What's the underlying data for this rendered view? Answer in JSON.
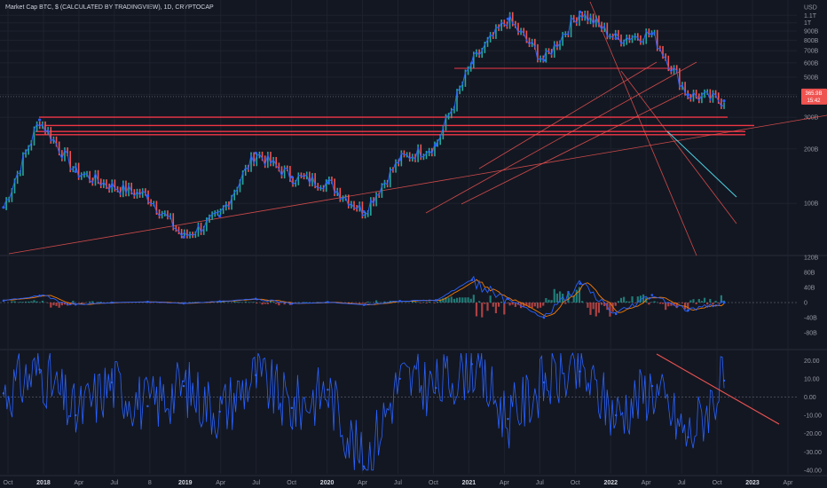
{
  "header": {
    "title": "Market Cap BTC, $ (CALCULATED BY TRADINGVIEW), 1D, CRYPTOCAP"
  },
  "colors": {
    "background": "#131722",
    "grid": "#1e222d",
    "price_up": "#26a69a",
    "price_down": "#ef5350",
    "price_line": "#2962ff",
    "level_line": "#f23645",
    "level_line_soft": "#e91e63",
    "trend_line": "#ef5350",
    "channel_line": "#4dd0e1",
    "osc_line": "#2962ff",
    "osc_signal": "#f57c00",
    "histogram_pos": "#26a69a",
    "histogram_neg": "#ef5350",
    "rsi_line": "#2962ff",
    "last_price_badge": "#ef5350"
  },
  "x_axis": {
    "labels": [
      "Oct",
      "2018",
      "Apr",
      "Jul",
      "8",
      "2019",
      "Apr",
      "Jul",
      "Oct",
      "2020",
      "Apr",
      "Jul",
      "Oct",
      "2021",
      "Apr",
      "Jul",
      "Oct",
      "2022",
      "Apr",
      "Jul",
      "Oct",
      "2023",
      "Apr"
    ],
    "bold_labels": [
      "2018",
      "2019",
      "2020",
      "2021",
      "2022",
      "2023"
    ]
  },
  "chart_data": [
    {
      "type": "line",
      "name": "price",
      "ylabel": "USD",
      "y_scale": "log",
      "y_ticks": [
        "USD",
        "1.1T",
        "1T",
        "900B",
        "800B",
        "700B",
        "600B",
        "500B",
        "400B",
        "300B",
        "200B",
        "100B"
      ],
      "last_value_badge": [
        "365.9B",
        "15:42"
      ],
      "x": [
        "2017-10",
        "2018-01",
        "2018-04",
        "2018-07",
        "2018-10",
        "2019-01",
        "2019-04",
        "2019-07",
        "2019-10",
        "2020-01",
        "2020-04",
        "2020-07",
        "2020-10",
        "2021-01",
        "2021-04",
        "2021-07",
        "2021-10",
        "2022-01",
        "2022-04",
        "2022-07",
        "2022-10"
      ],
      "values": [
        95,
        290,
        150,
        125,
        110,
        65,
        85,
        190,
        140,
        130,
        90,
        175,
        210,
        600,
        1050,
        620,
        1150,
        820,
        870,
        400,
        370
      ]
    },
    {
      "type": "line",
      "name": "oscillator",
      "y_ticks": [
        "120B",
        "80B",
        "40B",
        "0",
        "-40B",
        "-80B"
      ],
      "x": [
        "2017-10",
        "2018-01",
        "2018-04",
        "2018-07",
        "2018-10",
        "2019-01",
        "2019-04",
        "2019-07",
        "2019-10",
        "2020-01",
        "2020-04",
        "2020-07",
        "2020-10",
        "2021-01",
        "2021-04",
        "2021-07",
        "2021-10",
        "2022-01",
        "2022-04",
        "2022-07",
        "2022-10"
      ],
      "values": [
        5,
        18,
        -5,
        0,
        2,
        -2,
        3,
        10,
        -3,
        1,
        -6,
        4,
        6,
        60,
        10,
        -40,
        50,
        -30,
        20,
        -20,
        0
      ]
    },
    {
      "type": "line",
      "name": "momentum",
      "y_ticks": [
        "20.00",
        "10.00",
        "0.00",
        "-10.00",
        "-20.00",
        "-30.00",
        "-40.00"
      ],
      "x": [
        "2017-10",
        "2018-01",
        "2018-04",
        "2018-07",
        "2018-10",
        "2019-01",
        "2019-04",
        "2019-07",
        "2019-10",
        "2020-01",
        "2020-04",
        "2020-07",
        "2020-10",
        "2021-01",
        "2021-04",
        "2021-07",
        "2021-10",
        "2022-01",
        "2022-04",
        "2022-07",
        "2022-10"
      ],
      "values": [
        2,
        15,
        -10,
        8,
        -5,
        6,
        -8,
        12,
        -6,
        4,
        -38,
        10,
        5,
        18,
        -12,
        8,
        14,
        -10,
        6,
        -22,
        9
      ]
    }
  ]
}
